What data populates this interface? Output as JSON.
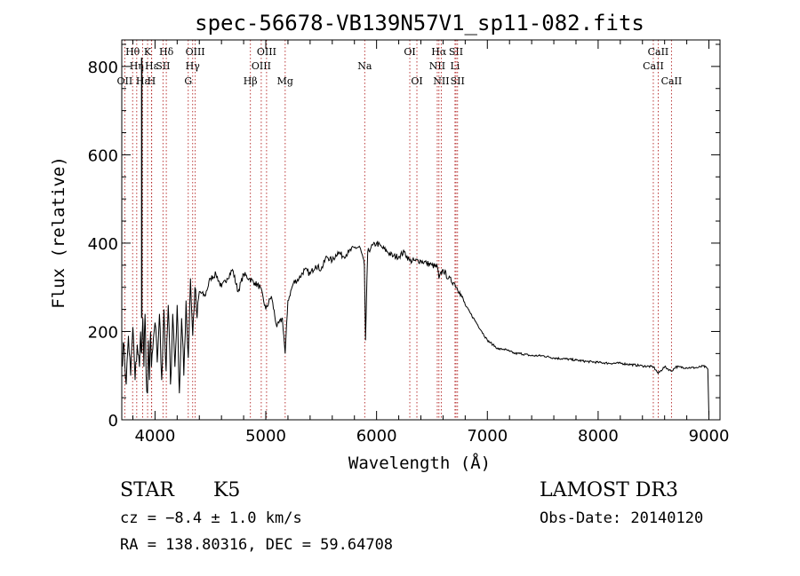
{
  "chart_data": {
    "type": "line",
    "title": "spec-56678-VB139N57V1_sp11-082.fits",
    "xlabel": "Wavelength (Å)",
    "ylabel": "Flux (relative)",
    "xlim": [
      3700,
      9100
    ],
    "ylim": [
      0,
      860
    ],
    "xticks": [
      4000,
      5000,
      6000,
      7000,
      8000,
      9000
    ],
    "yticks": [
      0,
      200,
      400,
      600,
      800
    ],
    "series": [
      {
        "name": "flux",
        "x": [
          3700,
          3720,
          3740,
          3760,
          3780,
          3800,
          3820,
          3840,
          3860,
          3870,
          3880,
          3890,
          3900,
          3910,
          3920,
          3933,
          3940,
          3950,
          3960,
          3968,
          3980,
          4000,
          4020,
          4040,
          4060,
          4080,
          4100,
          4120,
          4140,
          4160,
          4180,
          4200,
          4220,
          4240,
          4260,
          4280,
          4300,
          4320,
          4340,
          4360,
          4380,
          4400,
          4450,
          4500,
          4550,
          4600,
          4650,
          4700,
          4750,
          4800,
          4850,
          4900,
          4950,
          5000,
          5050,
          5100,
          5150,
          5175,
          5200,
          5250,
          5300,
          5350,
          5400,
          5450,
          5500,
          5550,
          5600,
          5650,
          5700,
          5750,
          5800,
          5850,
          5890,
          5900,
          5920,
          5950,
          6000,
          6050,
          6100,
          6150,
          6200,
          6250,
          6300,
          6350,
          6400,
          6450,
          6500,
          6550,
          6563,
          6600,
          6650,
          6700,
          6750,
          6800,
          6850,
          6900,
          6950,
          7000,
          7050,
          7100,
          7150,
          7200,
          7250,
          7300,
          7400,
          7500,
          7600,
          7700,
          7800,
          7900,
          8000,
          8100,
          8200,
          8300,
          8400,
          8500,
          8542,
          8600,
          8662,
          8700,
          8800,
          8900,
          8950,
          8990,
          9000
        ],
        "values": [
          130,
          170,
          80,
          190,
          100,
          210,
          90,
          170,
          120,
          200,
          150,
          230,
          120,
          240,
          100,
          60,
          180,
          90,
          200,
          120,
          160,
          220,
          130,
          240,
          90,
          250,
          110,
          260,
          80,
          240,
          120,
          260,
          60,
          230,
          100,
          270,
          140,
          320,
          190,
          300,
          230,
          290,
          280,
          320,
          330,
          300,
          320,
          340,
          290,
          330,
          320,
          310,
          300,
          250,
          280,
          210,
          230,
          150,
          270,
          310,
          320,
          340,
          330,
          350,
          340,
          370,
          360,
          380,
          370,
          380,
          390,
          390,
          350,
          180,
          380,
          390,
          400,
          390,
          380,
          370,
          370,
          380,
          360,
          360,
          360,
          355,
          350,
          345,
          320,
          340,
          320,
          310,
          290,
          260,
          240,
          220,
          200,
          180,
          170,
          160,
          160,
          155,
          150,
          150,
          145,
          145,
          140,
          138,
          135,
          132,
          130,
          128,
          128,
          125,
          122,
          120,
          105,
          120,
          110,
          120,
          118,
          118,
          122,
          115,
          10
        ]
      }
    ],
    "lines": [
      {
        "w": 3798,
        "label": "Hθ",
        "tier": 1
      },
      {
        "w": 3835,
        "label": "Hη",
        "tier": 2
      },
      {
        "w": 3727,
        "label": "OII",
        "tier": 3
      },
      {
        "w": 3889,
        "label": "Hε",
        "tier": 3
      },
      {
        "w": 3933,
        "label": "K",
        "tier": 1
      },
      {
        "w": 3968,
        "label": "H",
        "tier": 3
      },
      {
        "w": 3970,
        "label": "Hε",
        "tier": 2
      },
      {
        "w": 4072,
        "label": "SII",
        "tier": 2
      },
      {
        "w": 4102,
        "label": "Hδ",
        "tier": 1
      },
      {
        "w": 4300,
        "label": "G",
        "tier": 3
      },
      {
        "w": 4340,
        "label": "Hγ",
        "tier": 2
      },
      {
        "w": 4363,
        "label": "OIII",
        "tier": 1
      },
      {
        "w": 4861,
        "label": "Hβ",
        "tier": 3
      },
      {
        "w": 4959,
        "label": "OIII",
        "tier": 2
      },
      {
        "w": 5007,
        "label": "OIII",
        "tier": 1
      },
      {
        "w": 5175,
        "label": "Mg",
        "tier": 3
      },
      {
        "w": 5893,
        "label": "Na",
        "tier": 2
      },
      {
        "w": 6300,
        "label": "OI",
        "tier": 1
      },
      {
        "w": 6364,
        "label": "OI",
        "tier": 3
      },
      {
        "w": 6548,
        "label": "NII",
        "tier": 2
      },
      {
        "w": 6563,
        "label": "Hα",
        "tier": 1
      },
      {
        "w": 6584,
        "label": "NII",
        "tier": 3
      },
      {
        "w": 6708,
        "label": "Li",
        "tier": 2
      },
      {
        "w": 6717,
        "label": "SII",
        "tier": 1
      },
      {
        "w": 6731,
        "label": "SII",
        "tier": 3
      },
      {
        "w": 8498,
        "label": "CaII",
        "tier": 2
      },
      {
        "w": 8542,
        "label": "CaII",
        "tier": 1
      },
      {
        "w": 8662,
        "label": "CaII",
        "tier": 3
      }
    ]
  },
  "info": {
    "object_class": "STAR",
    "subclass": "K5",
    "survey": "LAMOST DR3",
    "cz": "cz = −8.4 ± 1.0 km/s",
    "obs_date": "Obs-Date: 20140120",
    "coords": "RA = 138.80316, DEC =  59.64708"
  }
}
